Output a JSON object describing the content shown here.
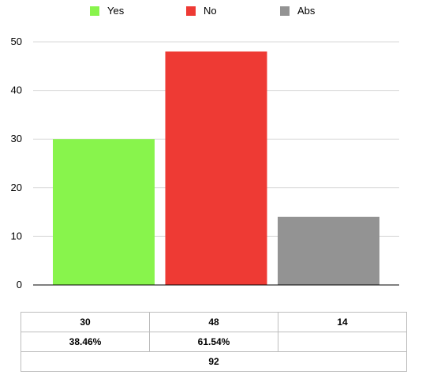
{
  "chart_data": {
    "type": "bar",
    "categories": [
      "Yes",
      "No",
      "Abs"
    ],
    "values": [
      30,
      48,
      14
    ],
    "colors": [
      "#88f44c",
      "#ee3a34",
      "#939393"
    ],
    "ylim": [
      0,
      50
    ],
    "yticks": [
      "0",
      "10",
      "20",
      "30",
      "40",
      "50"
    ],
    "grid": true,
    "legend": "top"
  },
  "legend": [
    {
      "label": "Yes",
      "color": "#88f44c"
    },
    {
      "label": "No",
      "color": "#ee3a34"
    },
    {
      "label": "Abs",
      "color": "#939393"
    }
  ],
  "table": {
    "counts": [
      "30",
      "48",
      "14"
    ],
    "percents": [
      "38.46%",
      "61.54%",
      ""
    ],
    "total": "92"
  }
}
